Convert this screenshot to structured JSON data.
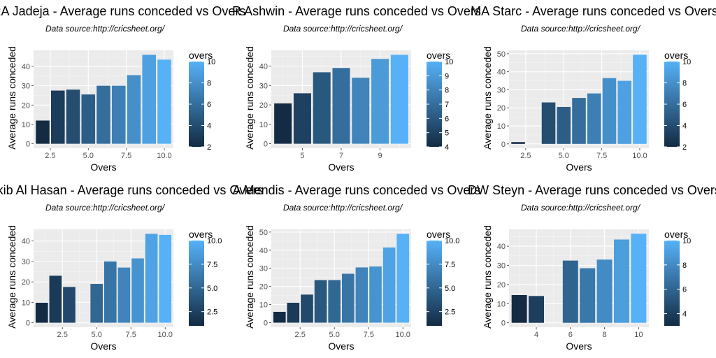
{
  "chart_data": [
    {
      "type": "bar",
      "title": "RA Jadeja - Average runs conceded vs Overs",
      "subtitle": "Data source:http://cricsheet.org/",
      "xlabel": "Overs",
      "ylabel": "Average runs conceded",
      "x": [
        2,
        3,
        4,
        5,
        6,
        7,
        8,
        9,
        10
      ],
      "values": [
        12,
        27.5,
        28,
        25.5,
        30,
        30,
        35.5,
        46,
        43.5
      ],
      "xlim": [
        1.4,
        10.6
      ],
      "ylim": [
        -2.3,
        48.3
      ],
      "xticks": [
        2.5,
        5.0,
        7.5,
        10.0
      ],
      "xtick_labels": [
        "2.5",
        "5.0",
        "7.5",
        "10.0"
      ],
      "yticks": [
        0,
        10,
        20,
        30,
        40
      ],
      "ytick_labels": [
        "0",
        "10",
        "20",
        "30",
        "40"
      ],
      "legend": {
        "title": "overs",
        "min": 2,
        "max": 10,
        "ticks": [
          2,
          4,
          6,
          8,
          10
        ],
        "tick_labels": [
          "2",
          "4",
          "6",
          "8",
          "10"
        ]
      }
    },
    {
      "type": "bar",
      "title": "R Ashwin - Average runs conceded vs Overs",
      "subtitle": "Data source:http://cricsheet.org/",
      "xlabel": "Overs",
      "ylabel": "Average runs conceded",
      "x": [
        4,
        5,
        6,
        7,
        8,
        9,
        10
      ],
      "values": [
        20.8,
        26,
        36.8,
        39,
        34,
        43.7,
        45.8
      ],
      "xlim": [
        3.4,
        10.6
      ],
      "ylim": [
        -2.3,
        48.1
      ],
      "xticks": [
        5,
        7,
        9
      ],
      "xtick_labels": [
        "5",
        "7",
        "9"
      ],
      "yticks": [
        0,
        10,
        20,
        30,
        40
      ],
      "ytick_labels": [
        "0",
        "10",
        "20",
        "30",
        "40"
      ],
      "legend": {
        "title": "overs",
        "min": 4,
        "max": 10,
        "ticks": [
          4,
          5,
          6,
          7,
          8,
          9,
          10
        ],
        "tick_labels": [
          "4",
          "5",
          "6",
          "7",
          "8",
          "9",
          "10"
        ]
      }
    },
    {
      "type": "bar",
      "title": "MA Starc - Average runs conceded vs Overs",
      "subtitle": "Data source:http://cricsheet.org/",
      "xlabel": "Overs",
      "ylabel": "Average runs conceded",
      "x": [
        2,
        4,
        5,
        6,
        7,
        8,
        9,
        10
      ],
      "values": [
        1,
        23,
        20.5,
        25.5,
        28,
        36.5,
        35,
        49.5
      ],
      "xlim": [
        1.4,
        10.6
      ],
      "ylim": [
        -2.4,
        51.9
      ],
      "xticks": [
        2.5,
        5.0,
        7.5,
        10.0
      ],
      "xtick_labels": [
        "2.5",
        "5.0",
        "7.5",
        "10.0"
      ],
      "yticks": [
        0,
        10,
        20,
        30,
        40,
        50
      ],
      "ytick_labels": [
        "0",
        "10",
        "20",
        "30",
        "40",
        "50"
      ],
      "legend": {
        "title": "overs",
        "min": 2,
        "max": 10,
        "ticks": [
          2,
          4,
          6,
          8,
          10
        ],
        "tick_labels": [
          "2",
          "4",
          "6",
          "8",
          "10"
        ]
      }
    },
    {
      "type": "bar",
      "title": "Shakib Al Hasan - Average runs conceded vs Overs",
      "subtitle": "Data source:http://cricsheet.org/",
      "xlabel": "Overs",
      "ylabel": "Average runs conceded",
      "x": [
        1,
        2,
        3,
        5,
        6,
        7,
        8,
        9,
        10
      ],
      "values": [
        9.8,
        23,
        17.5,
        19,
        30,
        27,
        31.5,
        43.5,
        43
      ],
      "xlim": [
        0.4,
        10.6
      ],
      "ylim": [
        -2.2,
        45.7
      ],
      "xticks": [
        2.5,
        5.0,
        7.5,
        10.0
      ],
      "xtick_labels": [
        "2.5",
        "5.0",
        "7.5",
        "10.0"
      ],
      "yticks": [
        0,
        10,
        20,
        30,
        40
      ],
      "ytick_labels": [
        "0",
        "10",
        "20",
        "30",
        "40"
      ],
      "legend": {
        "title": "overs",
        "min": 1,
        "max": 10,
        "ticks": [
          2.5,
          5.0,
          7.5,
          10.0
        ],
        "tick_labels": [
          "2.5",
          "5.0",
          "7.5",
          "10.0"
        ]
      }
    },
    {
      "type": "bar",
      "title": "A Mendis - Average runs conceded vs Overs",
      "subtitle": "Data source:http://cricsheet.org/",
      "xlabel": "Overs",
      "ylabel": "Average runs conceded",
      "x": [
        1,
        2,
        3,
        4,
        5,
        6,
        7,
        8,
        9,
        10
      ],
      "values": [
        6,
        11,
        15.5,
        23.5,
        23.5,
        27,
        30.5,
        31,
        41.5,
        49
      ],
      "xlim": [
        0.4,
        10.6
      ],
      "ylim": [
        -2.5,
        51.5
      ],
      "xticks": [
        2.5,
        5.0,
        7.5,
        10.0
      ],
      "xtick_labels": [
        "2.5",
        "5.0",
        "7.5",
        "10.0"
      ],
      "yticks": [
        0,
        10,
        20,
        30,
        40,
        50
      ],
      "ytick_labels": [
        "0",
        "10",
        "20",
        "30",
        "40",
        "50"
      ],
      "legend": {
        "title": "overs",
        "min": 1,
        "max": 10,
        "ticks": [
          2.5,
          5.0,
          7.5,
          10.0
        ],
        "tick_labels": [
          "2.5",
          "5.0",
          "7.5",
          "10.0"
        ]
      }
    },
    {
      "type": "bar",
      "title": "DW Steyn - Average runs conceded vs Overs",
      "subtitle": "Data source:http://cricsheet.org/",
      "xlabel": "Overs",
      "ylabel": "Average runs conceded",
      "x": [
        3,
        4,
        6,
        7,
        8,
        9,
        10
      ],
      "values": [
        14.5,
        14,
        32.5,
        28.5,
        33,
        43.5,
        46.5
      ],
      "xlim": [
        2.4,
        10.6
      ],
      "ylim": [
        -2.3,
        48.8
      ],
      "xticks": [
        4,
        6,
        8,
        10
      ],
      "xtick_labels": [
        "4",
        "6",
        "8",
        "10"
      ],
      "yticks": [
        0,
        10,
        20,
        30,
        40
      ],
      "ytick_labels": [
        "0",
        "10",
        "20",
        "30",
        "40"
      ],
      "legend": {
        "title": "overs",
        "min": 3,
        "max": 10,
        "ticks": [
          4,
          6,
          8,
          10
        ],
        "tick_labels": [
          "4",
          "6",
          "8",
          "10"
        ]
      }
    }
  ],
  "colors": {
    "panel_background": "#ebebeb",
    "grid_major": "#ffffff",
    "low": "#132b43",
    "high": "#56b1f7"
  }
}
